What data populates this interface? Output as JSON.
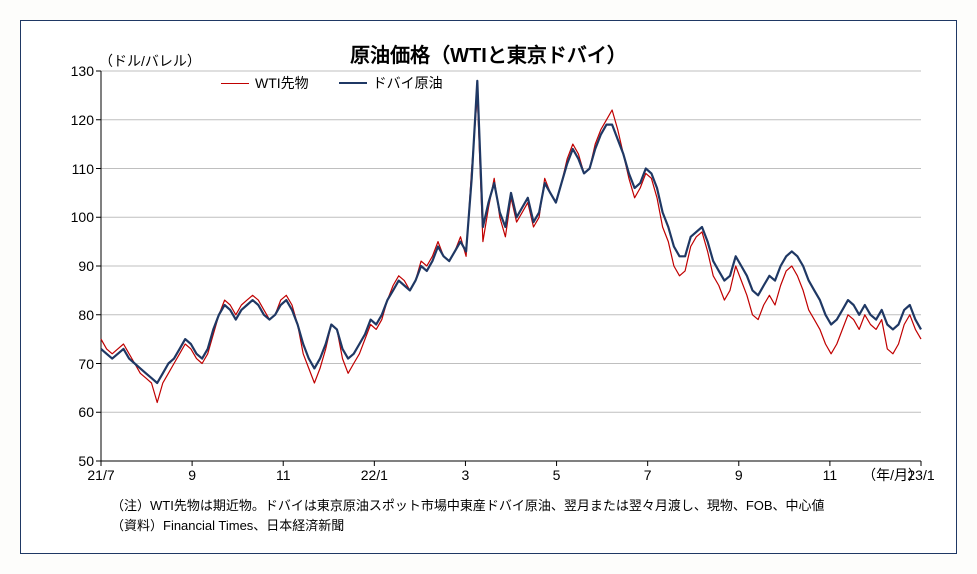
{
  "chart": {
    "type": "line",
    "title": "原油価格（WTIと東京ドバイ）",
    "y_axis_label": "（ドル/バレル）",
    "x_axis_label": "（年/月）",
    "background_color": "#ffffff",
    "border_color": "#1f3864",
    "grid_color": "#bfbfbf",
    "axis_color": "#000000",
    "ylim": [
      50,
      130
    ],
    "ytick_step": 10,
    "yticks": [
      50,
      60,
      70,
      80,
      90,
      100,
      110,
      120,
      130
    ],
    "x_categories": [
      "21/7",
      "9",
      "11",
      "22/1",
      "3",
      "5",
      "7",
      "9",
      "11",
      "23/1"
    ],
    "legend": [
      {
        "label": "WTI先物",
        "color": "#c00000",
        "width": 1.2
      },
      {
        "label": "ドバイ原油",
        "color": "#1f3864",
        "width": 2.2
      }
    ],
    "series": {
      "wti": {
        "color": "#c00000",
        "width": 1.2,
        "values": [
          75,
          73,
          72,
          73,
          74,
          72,
          70,
          68,
          67,
          66,
          62,
          66,
          68,
          70,
          72,
          74,
          73,
          71,
          70,
          72,
          76,
          80,
          83,
          82,
          80,
          82,
          83,
          84,
          83,
          81,
          79,
          80,
          83,
          84,
          82,
          78,
          72,
          69,
          66,
          69,
          73,
          78,
          77,
          71,
          68,
          70,
          72,
          75,
          78,
          77,
          79,
          83,
          86,
          88,
          87,
          85,
          87,
          91,
          90,
          92,
          95,
          92,
          91,
          93,
          96,
          92,
          110,
          125,
          95,
          102,
          108,
          100,
          96,
          104,
          99,
          101,
          103,
          98,
          100,
          108,
          105,
          103,
          107,
          112,
          115,
          113,
          109,
          110,
          115,
          118,
          120,
          122,
          118,
          113,
          108,
          104,
          106,
          109,
          108,
          104,
          98,
          95,
          90,
          88,
          89,
          94,
          96,
          97,
          93,
          88,
          86,
          83,
          85,
          90,
          87,
          84,
          80,
          79,
          82,
          84,
          82,
          86,
          89,
          90,
          88,
          85,
          81,
          79,
          77,
          74,
          72,
          74,
          77,
          80,
          79,
          77,
          80,
          78,
          77,
          79,
          73,
          72,
          74,
          78,
          80,
          77,
          75
        ]
      },
      "dubai": {
        "color": "#1f3864",
        "width": 2.2,
        "values": [
          73,
          72,
          71,
          72,
          73,
          71,
          70,
          69,
          68,
          67,
          66,
          68,
          70,
          71,
          73,
          75,
          74,
          72,
          71,
          73,
          77,
          80,
          82,
          81,
          79,
          81,
          82,
          83,
          82,
          80,
          79,
          80,
          82,
          83,
          81,
          78,
          74,
          71,
          69,
          71,
          74,
          78,
          77,
          73,
          71,
          72,
          74,
          76,
          79,
          78,
          80,
          83,
          85,
          87,
          86,
          85,
          87,
          90,
          89,
          91,
          94,
          92,
          91,
          93,
          95,
          93,
          108,
          128,
          98,
          103,
          107,
          101,
          98,
          105,
          100,
          102,
          104,
          99,
          101,
          107,
          105,
          103,
          107,
          111,
          114,
          112,
          109,
          110,
          114,
          117,
          119,
          119,
          116,
          113,
          109,
          106,
          107,
          110,
          109,
          106,
          101,
          98,
          94,
          92,
          92,
          96,
          97,
          98,
          95,
          91,
          89,
          87,
          88,
          92,
          90,
          88,
          85,
          84,
          86,
          88,
          87,
          90,
          92,
          93,
          92,
          90,
          87,
          85,
          83,
          80,
          78,
          79,
          81,
          83,
          82,
          80,
          82,
          80,
          79,
          81,
          78,
          77,
          78,
          81,
          82,
          79,
          77
        ]
      }
    },
    "footnote_1": "（注）WTI先物は期近物。ドバイは東京原油スポット市場中東産ドバイ原油、翌月または翌々月渡し、現物、FOB、中心値",
    "footnote_2": "（資料）Financial Times、日本経済新聞",
    "title_fontsize": 20,
    "label_fontsize": 14,
    "footnote_fontsize": 13
  }
}
